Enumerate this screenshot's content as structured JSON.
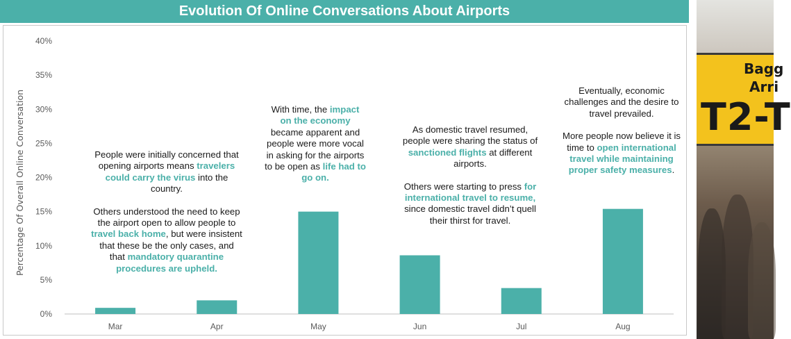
{
  "title": "Evolution Of Online Conversations About Airports",
  "colors": {
    "accent": "#4bb0a9",
    "bar": "#4bb0a9",
    "text": "#1a1a1a",
    "axis_text": "#595959",
    "grid": "#d9d9d9"
  },
  "chart_data": {
    "type": "bar",
    "title": "Evolution Of Online Conversations About Airports",
    "xlabel": "",
    "ylabel": "Percentage Of Overall Online Conversation",
    "categories": [
      "Mar",
      "Apr",
      "May",
      "Jun",
      "Jul",
      "Aug"
    ],
    "values": [
      0.9,
      2.0,
      15.0,
      8.6,
      3.8,
      15.4
    ],
    "ylim": [
      0,
      40
    ],
    "yticks": [
      0,
      5,
      10,
      15,
      20,
      25,
      30,
      35,
      40
    ],
    "ytick_labels": [
      "0%",
      "5%",
      "10%",
      "15%",
      "20%",
      "25%",
      "30%",
      "35%",
      "40%"
    ],
    "grid": true,
    "legend": "none"
  },
  "annotations": {
    "marapr": {
      "p1": [
        "People were initially concerned that opening airports means ",
        "travelers could carry the virus",
        " into the country."
      ],
      "p2": [
        "Others understood the need to keep the airport open to allow people to ",
        "travel back home",
        ", but were insistent that these be the only cases, and that ",
        "mandatory quarantine procedures are upheld."
      ]
    },
    "may": {
      "p1": [
        "With time, the ",
        "impact on the economy",
        " became apparent and people were more vocal in asking for the airports to be open as ",
        "life had to go on."
      ]
    },
    "jun": {
      "p1": [
        "As domestic travel resumed, people were sharing the status of ",
        "sanctioned flights",
        " at different airports."
      ],
      "p2": [
        "Others were starting to press ",
        "for international travel to resume,",
        " since domestic travel didn’t quell their thirst for travel."
      ]
    },
    "aug": {
      "p1": [
        "Eventually, economic challenges and the desire to travel prevailed."
      ],
      "p2": [
        "More people now believe it is time to ",
        "open international travel while maintaining proper safety measures",
        "."
      ]
    }
  },
  "photo": {
    "sign_line1": "Bagg",
    "sign_line2": "Arri",
    "sign_terminal": "T2-T"
  }
}
